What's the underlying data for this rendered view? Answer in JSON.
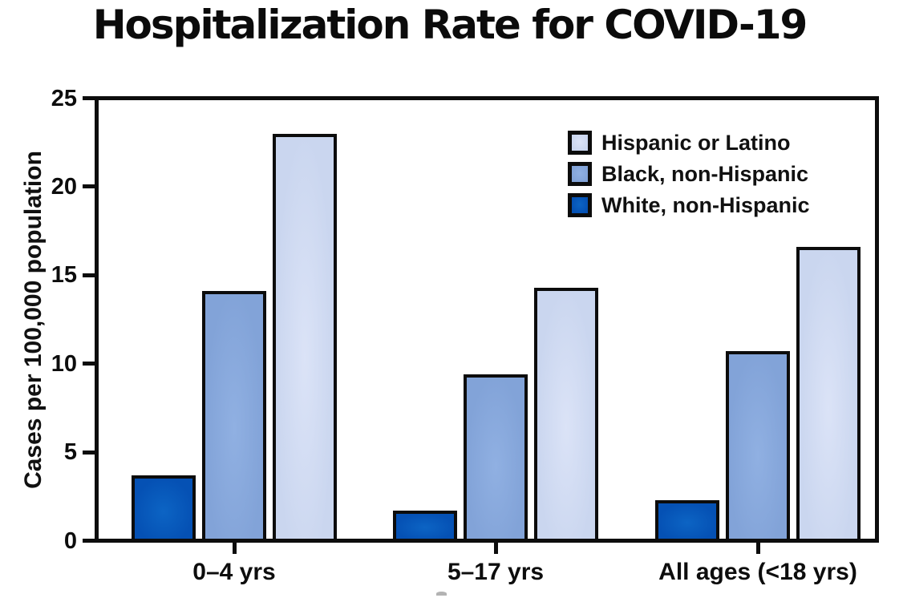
{
  "chart_data": {
    "type": "bar",
    "title": "Hospitalization Rate for COVID-19",
    "ylabel": "Cases per 100,000 population",
    "xlabel": "",
    "ylim": [
      0,
      25
    ],
    "yticks": [
      0,
      5,
      10,
      15,
      20,
      25
    ],
    "grid": false,
    "axis_color": "#0d0d0d",
    "categories": [
      "0–4 yrs",
      "5–17 yrs",
      "All ages (<18 yrs)"
    ],
    "series": [
      {
        "name": "White, non-Hispanic",
        "color": "#0551b4",
        "highlight": "#0c64c4",
        "values": [
          3.5,
          1.5,
          2.1
        ]
      },
      {
        "name": "Black, non-Hispanic",
        "color": "#82a3d8",
        "highlight": "#90b0e2",
        "values": [
          13.9,
          9.2,
          10.5
        ]
      },
      {
        "name": "Hispanic or Latino",
        "color": "#cad6ef",
        "highlight": "#dbe3f7",
        "values": [
          22.8,
          14.1,
          16.4
        ]
      }
    ],
    "legend": {
      "position": "top-right",
      "entries": [
        "Hispanic or Latino",
        "Black, non-Hispanic",
        "White, non-Hispanic"
      ]
    }
  }
}
